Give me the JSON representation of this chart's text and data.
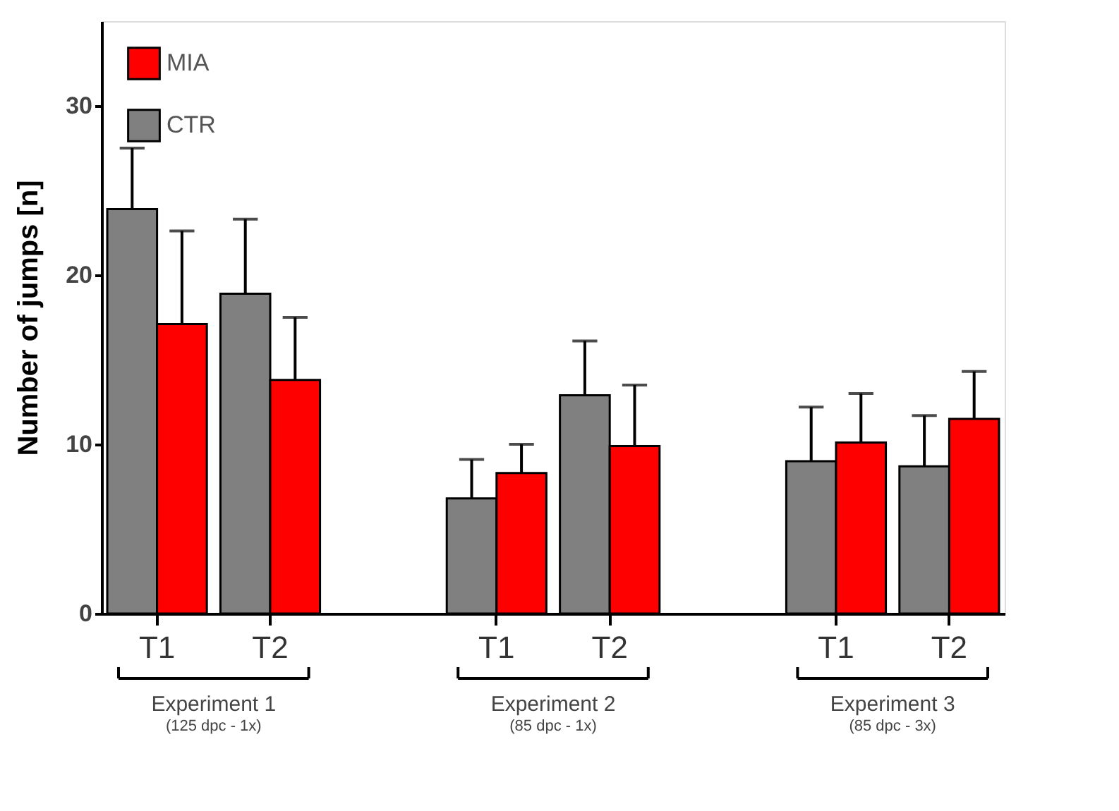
{
  "chart_data": {
    "type": "bar",
    "ylabel": "Number of jumps [n]",
    "categories": [
      "T1",
      "T2",
      "T1",
      "T2",
      "T1",
      "T2"
    ],
    "series": [
      {
        "name": "CTR",
        "color": "#808080",
        "values": [
          23.9,
          18.9,
          6.8,
          12.9,
          9.0,
          8.7
        ],
        "errors": [
          3.6,
          4.4,
          2.3,
          3.2,
          3.2,
          3.0
        ]
      },
      {
        "name": "MIA",
        "color": "#ff0000",
        "values": [
          17.1,
          13.8,
          8.3,
          9.9,
          10.1,
          11.5
        ],
        "errors": [
          5.5,
          3.7,
          1.7,
          3.6,
          2.9,
          2.8
        ]
      }
    ],
    "ylim": [
      0,
      35
    ],
    "yticks": [
      0,
      10,
      20,
      30
    ],
    "grid": false,
    "legend": "top left",
    "annotations": [
      "Experiment 1",
      "(125 dpc - 1x)",
      "Experiment 2",
      "(85 dpc - 1x)",
      "Experiment 3",
      "(85 dpc - 3x)"
    ]
  }
}
